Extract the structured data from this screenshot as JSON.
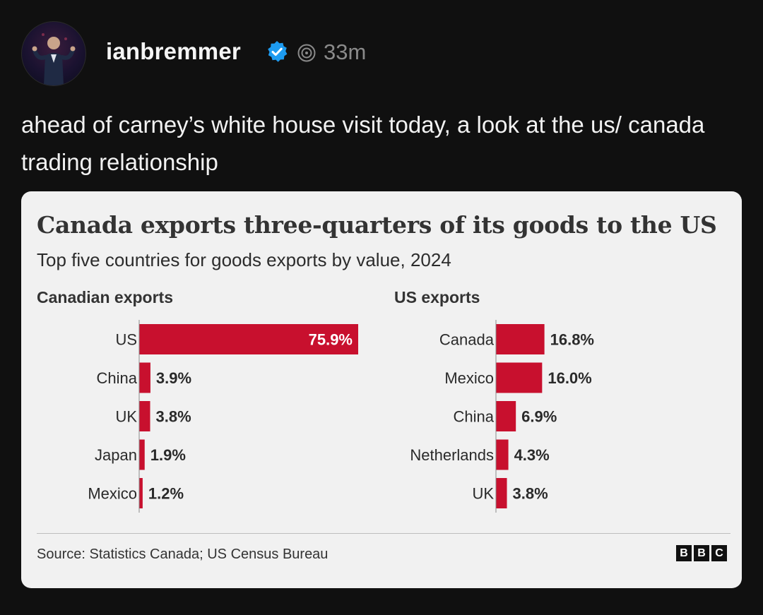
{
  "post": {
    "username": "ianbremmer",
    "timestamp": "33m",
    "text": "ahead of carney’s white house visit today, a look at the us/ canada trading relationship"
  },
  "icons": {
    "avatar": "profile-photo",
    "verified": "verified-badge-icon",
    "thread": "threads-icon"
  },
  "colors": {
    "bar": "#c8102e",
    "verified": "#1d9bf0",
    "background": "#101010",
    "card": "#f1f1f1"
  },
  "chart_data": [
    {
      "type": "bar",
      "orientation": "horizontal",
      "title": "Canada exports three-quarters of its goods to the US",
      "subtitle": "Top five countries for goods exports by value, 2024",
      "panel_title": "Canadian exports",
      "categories": [
        "US",
        "China",
        "UK",
        "Japan",
        "Mexico"
      ],
      "values": [
        75.9,
        3.9,
        3.8,
        1.9,
        1.2
      ],
      "data_labels": [
        "75.9%",
        "3.9%",
        "3.8%",
        "1.9%",
        "1.2%"
      ],
      "unit": "%",
      "grid": false,
      "legend": "none"
    },
    {
      "type": "bar",
      "orientation": "horizontal",
      "panel_title": "US exports",
      "categories": [
        "Canada",
        "Mexico",
        "China",
        "Netherlands",
        "UK"
      ],
      "values": [
        16.8,
        16.0,
        6.9,
        4.3,
        3.8
      ],
      "data_labels": [
        "16.8%",
        "16.0%",
        "6.9%",
        "4.3%",
        "3.8%"
      ],
      "unit": "%",
      "grid": false,
      "legend": "none"
    }
  ],
  "card": {
    "source": "Source: Statistics Canada; US Census Bureau",
    "logo_letters": [
      "B",
      "B",
      "C"
    ]
  }
}
